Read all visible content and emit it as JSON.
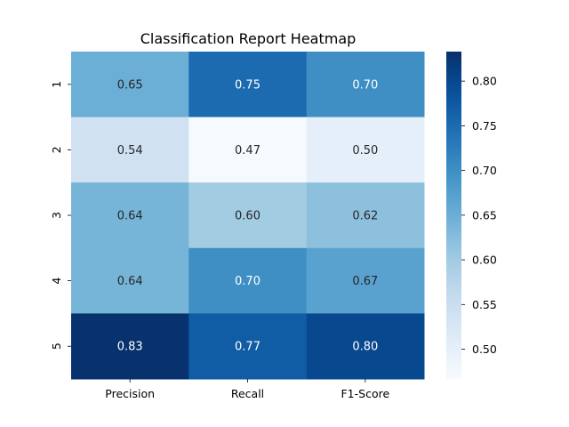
{
  "chart_data": {
    "type": "heatmap",
    "title": "Classification Report Heatmap",
    "columns": [
      "Precision",
      "Recall",
      "F1-Score"
    ],
    "rows": [
      "1",
      "2",
      "3",
      "4",
      "5"
    ],
    "values": [
      [
        0.65,
        0.75,
        0.7
      ],
      [
        0.54,
        0.47,
        0.5
      ],
      [
        0.64,
        0.6,
        0.62
      ],
      [
        0.64,
        0.7,
        0.67
      ],
      [
        0.83,
        0.77,
        0.8
      ]
    ],
    "value_labels": [
      [
        "0.65",
        "0.75",
        "0.70"
      ],
      [
        "0.54",
        "0.47",
        "0.50"
      ],
      [
        "0.64",
        "0.60",
        "0.62"
      ],
      [
        "0.64",
        "0.70",
        "0.67"
      ],
      [
        "0.83",
        "0.77",
        "0.80"
      ]
    ],
    "colorbar": {
      "colormap": "Blues",
      "range": [
        0.4667,
        0.833
      ],
      "ticks": [
        "0.50",
        "0.55",
        "0.60",
        "0.65",
        "0.70",
        "0.75",
        "0.80"
      ],
      "tick_values": [
        0.5,
        0.55,
        0.6,
        0.65,
        0.7,
        0.75,
        0.8
      ]
    },
    "grid": false,
    "legend": "right"
  }
}
